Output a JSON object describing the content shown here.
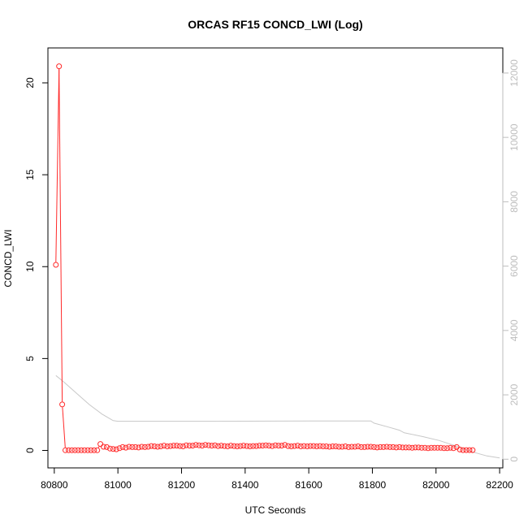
{
  "chart_data": {
    "type": "line",
    "title": "ORCAS RF15 CONCD_LWI (Log)",
    "xlabel": "UTC Seconds",
    "ylabel": "CONCD_LWI",
    "x_ticks": [
      "80800",
      "81000",
      "81200",
      "81400",
      "81600",
      "81800",
      "82000",
      "82200"
    ],
    "y_ticks": [
      "0",
      "5",
      "10",
      "15",
      "20"
    ],
    "y2_ticks": [
      "0",
      "2000",
      "4000",
      "6000",
      "8000",
      "10000",
      "12000"
    ],
    "xlim": [
      80780,
      82210
    ],
    "ylim": [
      -0.95,
      21.9
    ],
    "y2lim": [
      -270,
      12780
    ],
    "grid": false,
    "legend": "none",
    "colors": {
      "primary": "#ff2a2a",
      "secondary": "#c8c8c8"
    },
    "series": [
      {
        "axis": "left",
        "style": "line+points",
        "x_start": 80805,
        "x_step": 10,
        "values": [
          10.1,
          20.9,
          2.5,
          0.01,
          0.01,
          0.01,
          0.01,
          0.01,
          0.01,
          0.01,
          0.01,
          0.01,
          0.01,
          0.01,
          0.35,
          0.2,
          0.18,
          0.1,
          0.08,
          0.06,
          0.12,
          0.18,
          0.15,
          0.2,
          0.18,
          0.18,
          0.16,
          0.2,
          0.18,
          0.2,
          0.24,
          0.22,
          0.2,
          0.22,
          0.26,
          0.22,
          0.24,
          0.26,
          0.26,
          0.24,
          0.22,
          0.28,
          0.26,
          0.26,
          0.3,
          0.28,
          0.26,
          0.3,
          0.28,
          0.26,
          0.28,
          0.24,
          0.26,
          0.24,
          0.22,
          0.26,
          0.24,
          0.22,
          0.24,
          0.26,
          0.24,
          0.22,
          0.24,
          0.24,
          0.26,
          0.26,
          0.28,
          0.26,
          0.24,
          0.28,
          0.26,
          0.26,
          0.3,
          0.24,
          0.22,
          0.24,
          0.26,
          0.22,
          0.24,
          0.22,
          0.24,
          0.24,
          0.22,
          0.24,
          0.22,
          0.22,
          0.2,
          0.22,
          0.22,
          0.2,
          0.2,
          0.22,
          0.18,
          0.2,
          0.2,
          0.22,
          0.18,
          0.18,
          0.2,
          0.2,
          0.18,
          0.16,
          0.18,
          0.18,
          0.2,
          0.18,
          0.18,
          0.16,
          0.18,
          0.16,
          0.16,
          0.16,
          0.14,
          0.16,
          0.16,
          0.14,
          0.14,
          0.12,
          0.14,
          0.14,
          0.14,
          0.14,
          0.12,
          0.12,
          0.14,
          0.12,
          0.18,
          0.05,
          0.02,
          0.02,
          0.02,
          0.02
        ]
      },
      {
        "axis": "right",
        "style": "line",
        "x": [
          80805,
          80830,
          80870,
          80910,
          80950,
          80985,
          81000,
          81100,
          81300,
          81500,
          81700,
          81795,
          81805,
          81850,
          81885,
          81900,
          81960,
          82010,
          82060,
          82110,
          82160,
          82200
        ],
        "values": [
          2600,
          2400,
          2050,
          1700,
          1400,
          1200,
          1180,
          1180,
          1180,
          1185,
          1190,
          1190,
          1120,
          1000,
          900,
          820,
          700,
          580,
          420,
          240,
          100,
          40
        ]
      }
    ]
  }
}
